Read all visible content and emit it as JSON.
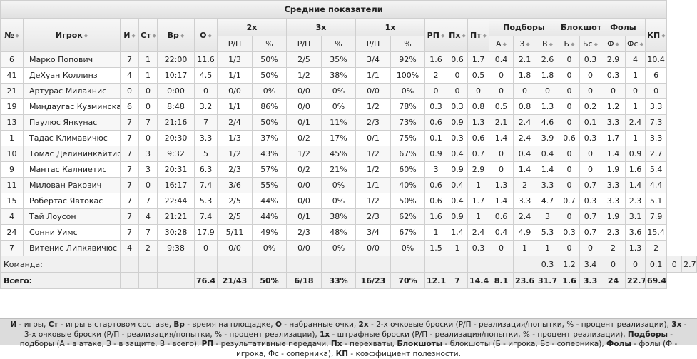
{
  "title": "Средние показатели",
  "groups": {
    "two": "2х",
    "three": "3х",
    "ft": "1х",
    "reb": "Подборы",
    "blk": "Блокшоты",
    "foul": "Фолы"
  },
  "columns": {
    "num": "№",
    "player": "Игрок",
    "g": "И",
    "gs": "Ст",
    "min": "Вр",
    "pts": "О",
    "rp_made": "Р/П",
    "pct": "%",
    "ast": "РП",
    "stl": "Пх",
    "to": "Пт",
    "reb_off": "А",
    "reb_def": "З",
    "reb_tot": "В",
    "blk_for": "Б",
    "blk_against": "Бс",
    "foul_for": "Ф",
    "foul_against": "Фс",
    "eff": "КП"
  },
  "players": [
    [
      "6",
      "Марко Попович",
      "7",
      "1",
      "22:00",
      "11.6",
      "1/3",
      "50%",
      "2/5",
      "35%",
      "3/4",
      "92%",
      "1.6",
      "0.6",
      "1.7",
      "0.4",
      "2.1",
      "2.6",
      "0",
      "0.3",
      "2.9",
      "4",
      "10.4"
    ],
    [
      "41",
      "ДеХуан Коллинз",
      "4",
      "1",
      "10:17",
      "4.5",
      "1/1",
      "50%",
      "1/2",
      "38%",
      "1/1",
      "100%",
      "2",
      "0",
      "0.5",
      "0",
      "1.8",
      "1.8",
      "0",
      "0",
      "0.3",
      "1",
      "6"
    ],
    [
      "21",
      "Артурас Милакнис",
      "0",
      "0",
      "0:00",
      "0",
      "0/0",
      "0%",
      "0/0",
      "0%",
      "0/0",
      "0%",
      "0",
      "0",
      "0",
      "0",
      "0",
      "0",
      "0",
      "0",
      "0",
      "0",
      "0"
    ],
    [
      "19",
      "Миндаугас Кузминскас",
      "6",
      "0",
      "8:48",
      "3.2",
      "1/1",
      "86%",
      "0/0",
      "0%",
      "1/2",
      "78%",
      "0.3",
      "0.3",
      "0.8",
      "0.5",
      "0.8",
      "1.3",
      "0",
      "0.2",
      "1.2",
      "1",
      "3.3"
    ],
    [
      "13",
      "Паулюс Янкунас",
      "7",
      "7",
      "21:16",
      "7",
      "2/4",
      "50%",
      "0/1",
      "11%",
      "2/3",
      "73%",
      "0.6",
      "0.9",
      "1.3",
      "2.1",
      "2.4",
      "4.6",
      "0",
      "0.1",
      "3.3",
      "2.4",
      "7.3"
    ],
    [
      "1",
      "Тадас Климавичюс",
      "7",
      "0",
      "20:30",
      "3.3",
      "1/3",
      "37%",
      "0/2",
      "17%",
      "0/1",
      "75%",
      "0.1",
      "0.3",
      "0.6",
      "1.4",
      "2.4",
      "3.9",
      "0.6",
      "0.3",
      "1.7",
      "1",
      "3.3"
    ],
    [
      "10",
      "Томас Делининкайтис",
      "7",
      "3",
      "9:32",
      "5",
      "1/2",
      "43%",
      "1/2",
      "45%",
      "1/2",
      "67%",
      "0.9",
      "0.4",
      "0.7",
      "0",
      "0.4",
      "0.4",
      "0",
      "0",
      "1.4",
      "0.9",
      "2.7"
    ],
    [
      "9",
      "Мантас Калниетис",
      "7",
      "3",
      "20:31",
      "6.3",
      "2/3",
      "57%",
      "0/2",
      "21%",
      "1/2",
      "60%",
      "3",
      "0.9",
      "2.9",
      "0",
      "1.4",
      "1.4",
      "0",
      "0",
      "1.9",
      "1.6",
      "5.4"
    ],
    [
      "11",
      "Милован Ракович",
      "7",
      "0",
      "16:17",
      "7.4",
      "3/6",
      "55%",
      "0/0",
      "0%",
      "1/1",
      "40%",
      "0.6",
      "0.4",
      "1",
      "1.3",
      "2",
      "3.3",
      "0",
      "0.7",
      "3.3",
      "1.4",
      "4.4"
    ],
    [
      "15",
      "Робертас Явтокас",
      "7",
      "7",
      "22:44",
      "5.3",
      "2/5",
      "44%",
      "0/0",
      "0%",
      "1/2",
      "50%",
      "0.6",
      "0.4",
      "1.7",
      "1.4",
      "3.3",
      "4.7",
      "0.7",
      "0.3",
      "3.3",
      "2.3",
      "5.1"
    ],
    [
      "4",
      "Тай Лоусон",
      "7",
      "4",
      "21:21",
      "7.4",
      "2/5",
      "44%",
      "0/1",
      "38%",
      "2/3",
      "62%",
      "1.6",
      "0.9",
      "1",
      "0.6",
      "2.4",
      "3",
      "0",
      "0.7",
      "1.9",
      "3.1",
      "7.9"
    ],
    [
      "24",
      "Сонни Уимс",
      "7",
      "7",
      "30:28",
      "17.9",
      "5/11",
      "49%",
      "2/3",
      "48%",
      "3/4",
      "67%",
      "1",
      "1.4",
      "2.4",
      "0.4",
      "4.9",
      "5.3",
      "0.3",
      "0.7",
      "2.3",
      "3.6",
      "15.4"
    ],
    [
      "7",
      "Витенис Липкявичюс",
      "4",
      "2",
      "9:38",
      "0",
      "0/0",
      "0%",
      "0/0",
      "0%",
      "0/0",
      "0%",
      "1.5",
      "1",
      "0.3",
      "0",
      "1",
      "1",
      "0",
      "0",
      "2",
      "1.3",
      "2"
    ]
  ],
  "team_row": {
    "label": "Команда:",
    "values": [
      "",
      "",
      "",
      "",
      "",
      "",
      "",
      "",
      "",
      "",
      "",
      "",
      "",
      "",
      "",
      "0.3",
      "1.2",
      "3.4",
      "0",
      "0",
      "0.1",
      "0",
      "2.7"
    ]
  },
  "total_row": {
    "label": "Всего:",
    "values": [
      "",
      "",
      "",
      "76.4",
      "21/43",
      "50%",
      "6/18",
      "33%",
      "16/23",
      "70%",
      "12.1",
      "7",
      "14.4",
      "8.1",
      "23.6",
      "31.7",
      "1.6",
      "3.3",
      "24",
      "22.7",
      "69.4"
    ]
  },
  "legend": [
    [
      "И",
      " - игры, "
    ],
    [
      "Ст",
      " - игры в стартовом составе, "
    ],
    [
      "Вр",
      " - время на площадке, "
    ],
    [
      "О",
      " - набранные очки, "
    ],
    [
      "2х",
      " - 2-х очковые броски (Р/П - реализация/попытки, % - процент реализации), "
    ],
    [
      "3х",
      " - 3-х очковые броски (Р/П - реализация/попытки, % - процент реализации), "
    ],
    [
      "1х",
      " - штрафные броски (Р/П - реализация/попытки, % - процент реализации), "
    ],
    [
      "Подборы",
      " - подборы (А - в атаке, З - в защите, В - всего), "
    ],
    [
      "РП",
      " - результативные передачи, "
    ],
    [
      "Пх",
      " - перехваты, "
    ],
    [
      "Блокшоты",
      " - блокшоты (Б - игрока, Бс - соперника), "
    ],
    [
      "Фолы",
      " - фолы (Ф - игрока, Фс - соперника), "
    ],
    [
      "КП",
      " - коэффициент полезности."
    ]
  ],
  "icons": {
    "sort": "sort-arrows-icon"
  }
}
